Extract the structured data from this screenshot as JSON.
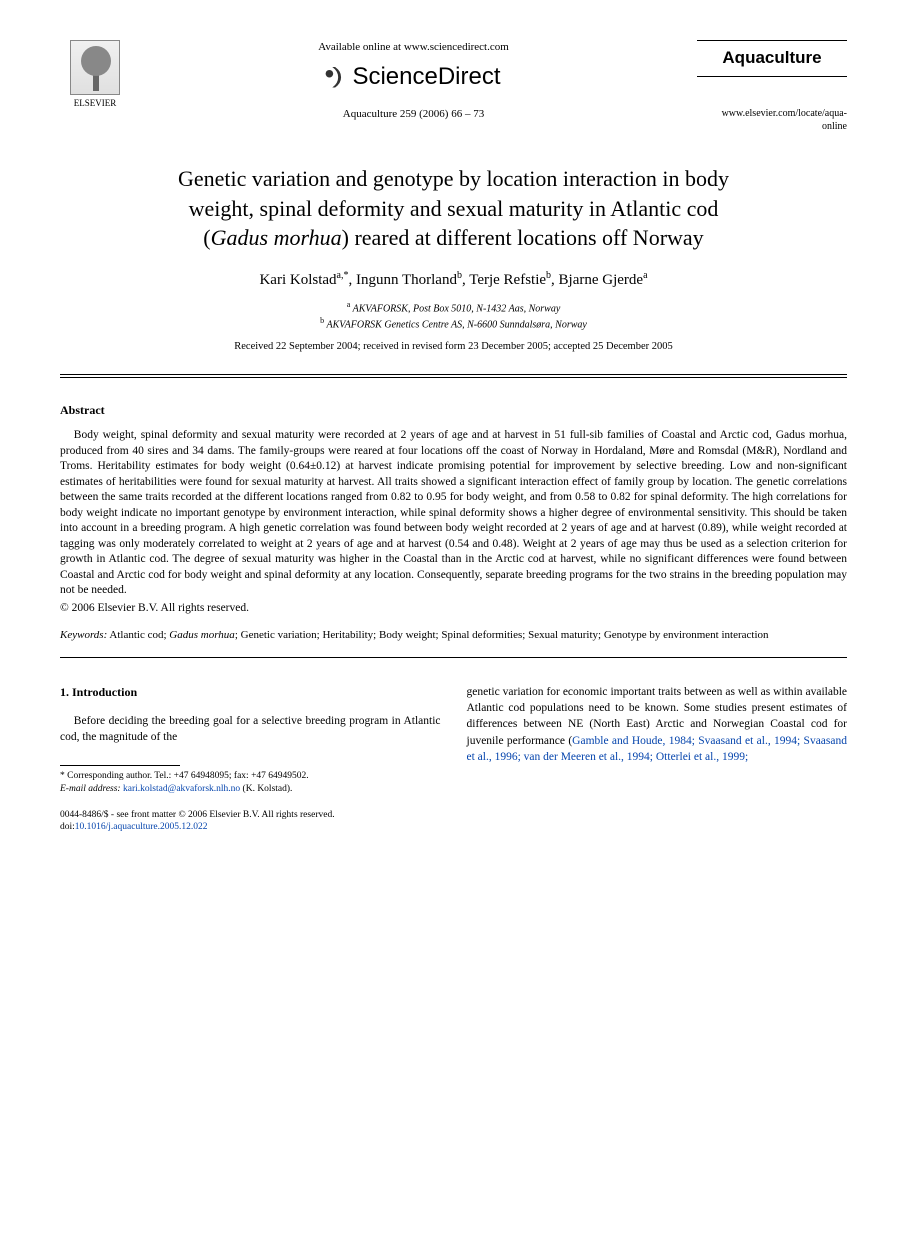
{
  "header": {
    "publisher_label": "ELSEVIER",
    "available_text": "Available online at www.sciencedirect.com",
    "platform_name": "ScienceDirect",
    "journal_ref": "Aquaculture 259 (2006) 66 – 73",
    "journal_name": "Aquaculture",
    "journal_url": "www.elsevier.com/locate/aqua-online"
  },
  "title": {
    "line1": "Genetic variation and genotype by location interaction in body",
    "line2": "weight, spinal deformity and sexual maturity in Atlantic cod",
    "line3_pre": "(",
    "line3_species": "Gadus morhua",
    "line3_post": ") reared at different locations off Norway"
  },
  "authors_html": "Kari Kolstad<sup>a,*</sup>, Ingunn Thorland<sup>b</sup>, Terje Refstie<sup>b</sup>, Bjarne Gjerde<sup>a</sup>",
  "affiliations": {
    "a": "AKVAFORSK, Post Box 5010, N-1432 Aas, Norway",
    "b": "AKVAFORSK Genetics Centre AS, N-6600 Sunndalsøra, Norway"
  },
  "dates": "Received 22 September 2004; received in revised form 23 December 2005; accepted 25 December 2005",
  "abstract": {
    "heading": "Abstract",
    "body": "Body weight, spinal deformity and sexual maturity were recorded at 2 years of age and at harvest in 51 full-sib families of Coastal and Arctic cod, Gadus morhua, produced from 40 sires and 34 dams. The family-groups were reared at four locations off the coast of Norway in Hordaland, Møre and Romsdal (M&R), Nordland and Troms. Heritability estimates for body weight (0.64±0.12) at harvest indicate promising potential for improvement by selective breeding. Low and non-significant estimates of heritabilities were found for sexual maturity at harvest. All traits showed a significant interaction effect of family group by location. The genetic correlations between the same traits recorded at the different locations ranged from 0.82 to 0.95 for body weight, and from 0.58 to 0.82 for spinal deformity. The high correlations for body weight indicate no important genotype by environment interaction, while spinal deformity shows a higher degree of environmental sensitivity. This should be taken into account in a breeding program. A high genetic correlation was found between body weight recorded at 2 years of age and at harvest (0.89), while weight recorded at tagging was only moderately correlated to weight at 2 years of age and at harvest (0.54 and 0.48). Weight at 2 years of age may thus be used as a selection criterion for growth in Atlantic cod. The degree of sexual maturity was higher in the Coastal than in the Arctic cod at harvest, while no significant differences were found between Coastal and Arctic cod for body weight and spinal deformity at any location. Consequently, separate breeding programs for the two strains in the breeding population may not be needed.",
    "copyright": "© 2006 Elsevier B.V. All rights reserved."
  },
  "keywords": {
    "label": "Keywords:",
    "text": "Atlantic cod; Gadus morhua; Genetic variation; Heritability; Body weight; Spinal deformities; Sexual maturity; Genotype by environment interaction"
  },
  "intro": {
    "heading": "1. Introduction",
    "col1": "Before deciding the breeding goal for a selective breeding program in Atlantic cod, the magnitude of the",
    "col2_pre": "genetic variation for economic important traits between as well as within available Atlantic cod populations need to be known. Some studies present estimates of differences between NE (North East) Arctic and Norwegian Coastal cod for juvenile performance (",
    "col2_ref": "Gamble and Houde, 1984; Svaasand et al., 1994; Svaasand et al., 1996; van der Meeren et al., 1994; Otterlei et al., 1999;"
  },
  "footnote": {
    "corr": "* Corresponding author. Tel.: +47 64948095; fax: +47 64949502.",
    "email_label": "E-mail address:",
    "email": "kari.kolstad@akvaforsk.nlh.no",
    "email_suffix": "(K. Kolstad)."
  },
  "doi": {
    "front_matter": "0044-8486/$ - see front matter © 2006 Elsevier B.V. All rights reserved.",
    "doi_label": "doi:",
    "doi_value": "10.1016/j.aquaculture.2005.12.022"
  }
}
